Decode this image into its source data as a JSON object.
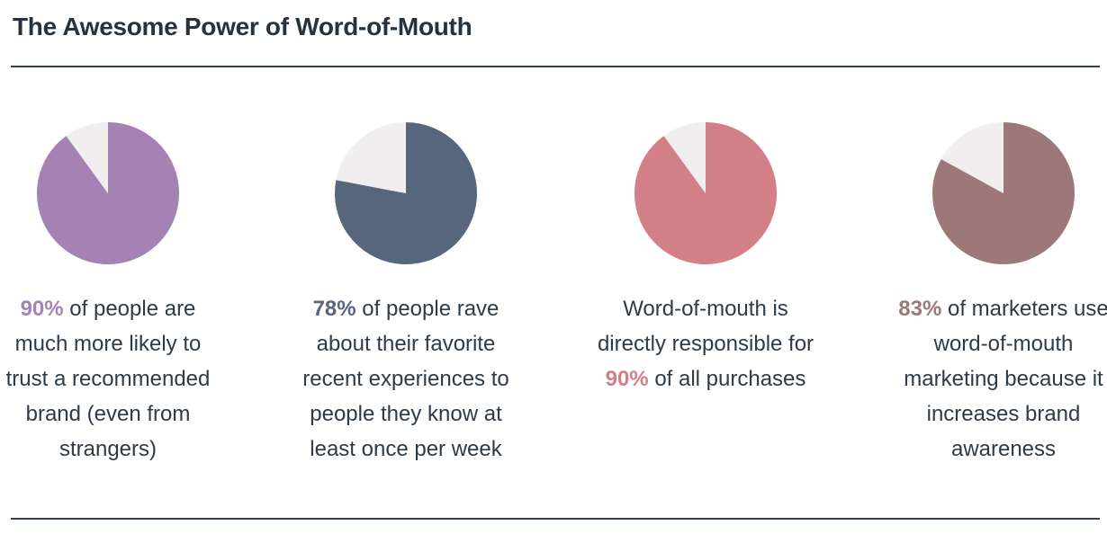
{
  "title": "The Awesome Power of Word-of-Mouth",
  "chart_data": [
    {
      "type": "pie",
      "values": [
        90,
        10
      ],
      "colors": [
        "#a681b4",
        "#f0eeef"
      ],
      "value_labels": [
        "90%",
        null
      ],
      "text_after": "of people are much more likely to trust a recommended brand (even from strangers)"
    },
    {
      "type": "pie",
      "values": [
        78,
        22
      ],
      "colors": [
        "#57667c",
        "#f0eeef"
      ],
      "value_labels": [
        "78%",
        null
      ],
      "text_after": "of people rave about their favorite recent experiences to people they know at least once per week"
    },
    {
      "type": "pie",
      "values": [
        90,
        10
      ],
      "colors": [
        "#d27f87",
        "#f0eeef"
      ],
      "value_labels": [
        "90%",
        null
      ],
      "text_before": "Word-of-mouth is directly responsible for",
      "text_after": "of all purchases"
    },
    {
      "type": "pie",
      "values": [
        83,
        17
      ],
      "colors": [
        "#9c7879",
        "#f0eeef"
      ],
      "value_labels": [
        "83%",
        null
      ],
      "text_after": "of marketers use word-of-mouth marketing because it increases brand awareness"
    }
  ]
}
